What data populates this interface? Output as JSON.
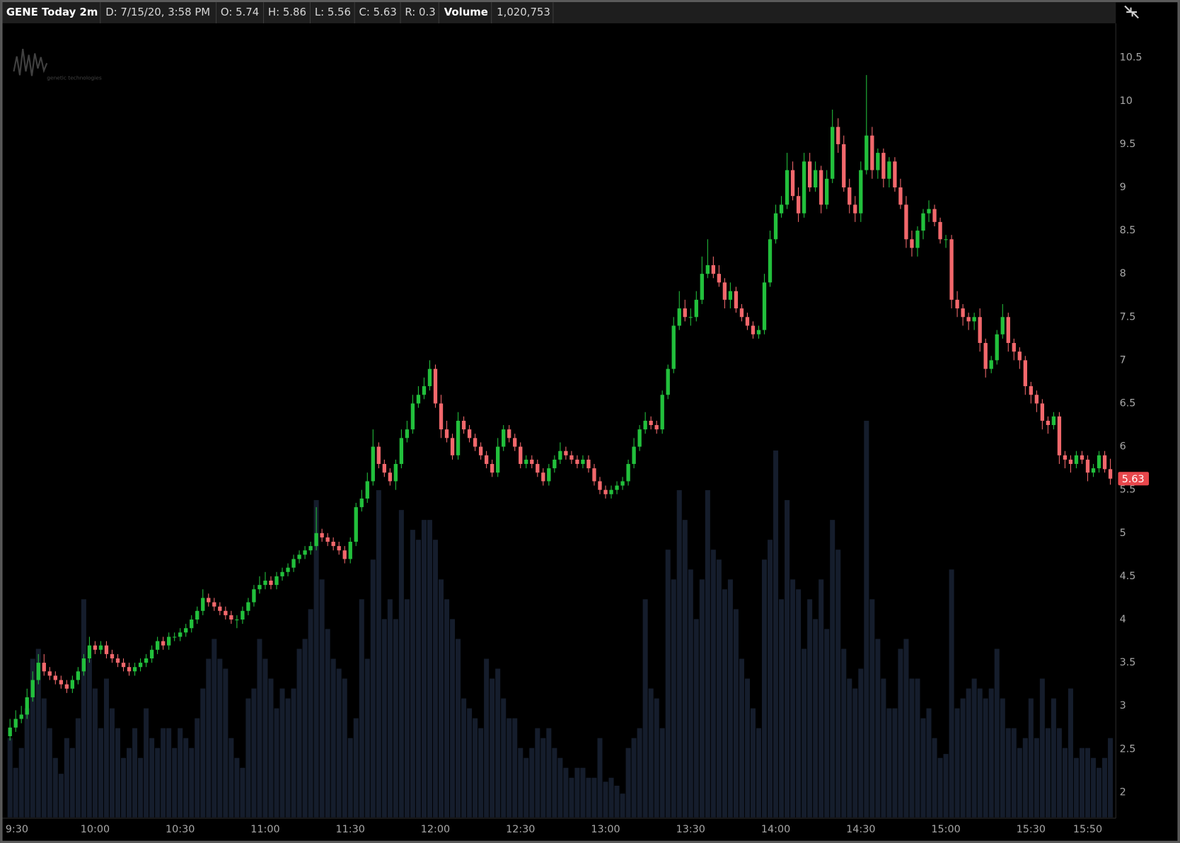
{
  "header": {
    "symbol": "GENE Today 2m",
    "date": "D: 7/15/20, 3:58 PM",
    "open": "O: 5.74",
    "high": "H: 5.86",
    "low": "L: 5.56",
    "close": "C: 5.63",
    "range": "R: 0.3",
    "volume_label": "Volume",
    "volume": "1,020,753"
  },
  "chart_data": {
    "type": "candlestick",
    "watermark": "genetic technologies",
    "categories": [
      "9:30",
      null,
      null,
      null,
      null,
      null,
      null,
      null,
      null,
      null,
      null,
      null,
      null,
      null,
      null,
      "10:00",
      null,
      null,
      null,
      null,
      null,
      null,
      null,
      null,
      null,
      null,
      null,
      null,
      null,
      null,
      "10:30",
      null,
      null,
      null,
      null,
      null,
      null,
      null,
      null,
      null,
      null,
      null,
      null,
      null,
      null,
      "11:00",
      null,
      null,
      null,
      null,
      null,
      null,
      null,
      null,
      null,
      null,
      null,
      null,
      null,
      null,
      "11:30",
      null,
      null,
      null,
      null,
      null,
      null,
      null,
      null,
      null,
      null,
      null,
      null,
      null,
      null,
      "12:00",
      null,
      null,
      null,
      null,
      null,
      null,
      null,
      null,
      null,
      null,
      null,
      null,
      null,
      null,
      "12:30",
      null,
      null,
      null,
      null,
      null,
      null,
      null,
      null,
      null,
      null,
      null,
      null,
      null,
      null,
      "13:00",
      null,
      null,
      null,
      null,
      null,
      null,
      null,
      null,
      null,
      null,
      null,
      null,
      null,
      null,
      "13:30",
      null,
      null,
      null,
      null,
      null,
      null,
      null,
      null,
      null,
      null,
      null,
      null,
      null,
      null,
      "14:00",
      null,
      null,
      null,
      null,
      null,
      null,
      null,
      null,
      null,
      null,
      null,
      null,
      null,
      null,
      "14:30",
      null,
      null,
      null,
      null,
      null,
      null,
      null,
      null,
      null,
      null,
      null,
      null,
      null,
      null,
      "15:00",
      null,
      null,
      null,
      null,
      null,
      null,
      null,
      null,
      null,
      null,
      null,
      null,
      null,
      null,
      "15:30",
      null,
      null,
      null,
      null,
      null,
      null,
      null,
      null,
      null,
      "15:50",
      null,
      null,
      null,
      null
    ],
    "open": [
      2.65,
      2.75,
      2.85,
      2.9,
      3.1,
      3.3,
      3.5,
      3.4,
      3.35,
      3.3,
      3.25,
      3.2,
      3.3,
      3.4,
      3.55,
      3.7,
      3.65,
      3.7,
      3.6,
      3.55,
      3.5,
      3.45,
      3.4,
      3.45,
      3.5,
      3.55,
      3.65,
      3.75,
      3.7,
      3.8,
      3.8,
      3.85,
      3.9,
      4.0,
      4.1,
      4.25,
      4.2,
      4.15,
      4.1,
      4.05,
      4.0,
      4.0,
      4.1,
      4.2,
      4.35,
      4.4,
      4.45,
      4.4,
      4.5,
      4.55,
      4.6,
      4.7,
      4.75,
      4.8,
      4.85,
      5.0,
      4.95,
      4.9,
      4.85,
      4.8,
      4.7,
      4.9,
      5.3,
      5.4,
      5.6,
      6.0,
      5.8,
      5.7,
      5.6,
      5.8,
      6.1,
      6.2,
      6.5,
      6.6,
      6.7,
      6.9,
      6.5,
      6.2,
      6.1,
      5.9,
      6.3,
      6.2,
      6.1,
      6.0,
      5.9,
      5.8,
      5.7,
      6.0,
      6.2,
      6.1,
      6.0,
      5.8,
      5.85,
      5.8,
      5.7,
      5.6,
      5.75,
      5.85,
      5.95,
      5.9,
      5.85,
      5.8,
      5.85,
      5.75,
      5.6,
      5.5,
      5.45,
      5.5,
      5.55,
      5.6,
      5.8,
      6.0,
      6.2,
      6.3,
      6.25,
      6.2,
      6.6,
      6.9,
      7.4,
      7.6,
      7.5,
      7.5,
      7.7,
      8.0,
      8.1,
      8.0,
      7.9,
      7.7,
      7.8,
      7.6,
      7.5,
      7.4,
      7.3,
      7.35,
      7.9,
      8.4,
      8.7,
      8.8,
      9.2,
      8.9,
      8.7,
      9.3,
      9.0,
      9.2,
      8.8,
      9.1,
      9.7,
      9.5,
      9.0,
      8.8,
      8.7,
      9.2,
      9.6,
      9.2,
      9.4,
      9.1,
      9.3,
      9.0,
      8.8,
      8.4,
      8.3,
      8.5,
      8.7,
      8.75,
      8.6,
      8.4,
      8.4,
      7.7,
      7.6,
      7.5,
      7.45,
      7.5,
      7.2,
      6.9,
      7.0,
      7.3,
      7.5,
      7.2,
      7.1,
      7.0,
      6.7,
      6.6,
      6.5,
      6.3,
      6.25,
      6.35,
      5.9,
      5.85,
      5.8,
      5.9,
      5.85,
      5.7,
      5.75,
      5.9,
      5.74
    ],
    "high": [
      2.85,
      2.95,
      3.0,
      3.2,
      3.4,
      3.6,
      3.6,
      3.45,
      3.4,
      3.35,
      3.3,
      3.35,
      3.45,
      3.6,
      3.8,
      3.75,
      3.75,
      3.75,
      3.65,
      3.6,
      3.55,
      3.5,
      3.5,
      3.55,
      3.6,
      3.7,
      3.8,
      3.8,
      3.85,
      3.85,
      3.9,
      3.95,
      4.05,
      4.15,
      4.35,
      4.3,
      4.25,
      4.2,
      4.15,
      4.1,
      4.05,
      4.15,
      4.25,
      4.4,
      4.5,
      4.55,
      4.5,
      4.55,
      4.6,
      4.65,
      4.75,
      4.8,
      4.85,
      4.9,
      5.3,
      5.05,
      5.0,
      4.95,
      4.9,
      4.85,
      4.95,
      5.35,
      5.5,
      5.7,
      6.2,
      6.05,
      5.85,
      5.75,
      5.85,
      6.2,
      6.3,
      6.6,
      6.7,
      6.8,
      7.0,
      6.95,
      6.6,
      6.3,
      6.15,
      6.4,
      6.35,
      6.25,
      6.15,
      6.05,
      5.95,
      5.85,
      6.1,
      6.25,
      6.25,
      6.15,
      6.05,
      5.9,
      5.9,
      5.85,
      5.75,
      5.8,
      5.9,
      6.05,
      6.0,
      5.95,
      5.9,
      5.9,
      5.9,
      5.8,
      5.65,
      5.55,
      5.55,
      5.6,
      5.65,
      5.85,
      6.1,
      6.25,
      6.4,
      6.35,
      6.3,
      6.65,
      6.95,
      7.5,
      7.8,
      7.7,
      7.6,
      7.8,
      8.2,
      8.4,
      8.2,
      8.1,
      7.95,
      7.9,
      7.85,
      7.65,
      7.55,
      7.45,
      7.4,
      8.0,
      8.5,
      8.8,
      8.9,
      9.4,
      9.3,
      9.0,
      9.4,
      9.4,
      9.3,
      9.25,
      9.2,
      9.9,
      9.8,
      9.6,
      9.1,
      8.9,
      9.3,
      10.3,
      9.7,
      9.45,
      9.45,
      9.35,
      9.35,
      9.1,
      8.9,
      8.5,
      8.55,
      8.75,
      8.85,
      8.8,
      8.65,
      8.45,
      8.45,
      7.8,
      7.65,
      7.55,
      7.55,
      7.6,
      7.25,
      7.05,
      7.35,
      7.65,
      7.55,
      7.25,
      7.15,
      7.05,
      6.75,
      6.65,
      6.55,
      6.35,
      6.4,
      6.4,
      5.95,
      5.9,
      5.95,
      5.95,
      5.9,
      5.8,
      5.95,
      5.95,
      5.86
    ],
    "low": [
      2.6,
      2.7,
      2.8,
      2.85,
      3.05,
      3.25,
      3.35,
      3.3,
      3.25,
      3.2,
      3.15,
      3.15,
      3.25,
      3.35,
      3.5,
      3.6,
      3.6,
      3.55,
      3.5,
      3.45,
      3.4,
      3.35,
      3.35,
      3.4,
      3.45,
      3.5,
      3.6,
      3.65,
      3.65,
      3.75,
      3.75,
      3.8,
      3.85,
      3.95,
      4.05,
      4.15,
      4.1,
      4.05,
      4.0,
      3.95,
      3.9,
      3.95,
      4.05,
      4.15,
      4.3,
      4.35,
      4.35,
      4.35,
      4.45,
      4.5,
      4.55,
      4.65,
      4.7,
      4.75,
      4.8,
      4.9,
      4.85,
      4.8,
      4.75,
      4.65,
      4.65,
      4.85,
      5.25,
      5.35,
      5.55,
      5.75,
      5.65,
      5.55,
      5.5,
      5.75,
      6.05,
      6.15,
      6.45,
      6.55,
      6.65,
      6.45,
      6.1,
      6.05,
      5.85,
      5.85,
      6.15,
      6.05,
      5.95,
      5.85,
      5.75,
      5.65,
      5.65,
      5.95,
      6.05,
      5.95,
      5.75,
      5.75,
      5.75,
      5.65,
      5.55,
      5.55,
      5.7,
      5.8,
      5.85,
      5.8,
      5.75,
      5.75,
      5.7,
      5.55,
      5.45,
      5.4,
      5.4,
      5.45,
      5.5,
      5.55,
      5.75,
      5.95,
      6.15,
      6.2,
      6.15,
      6.15,
      6.55,
      6.85,
      7.35,
      7.45,
      7.4,
      7.45,
      7.65,
      7.95,
      7.95,
      7.85,
      7.6,
      7.6,
      7.55,
      7.45,
      7.35,
      7.25,
      7.25,
      7.3,
      7.85,
      8.35,
      8.65,
      8.75,
      8.85,
      8.6,
      8.65,
      8.95,
      8.95,
      8.7,
      8.75,
      9.05,
      9.4,
      8.95,
      8.7,
      8.6,
      8.6,
      9.15,
      9.1,
      9.1,
      9.0,
      9.0,
      8.95,
      8.75,
      8.3,
      8.2,
      8.2,
      8.4,
      8.6,
      8.55,
      8.35,
      8.3,
      7.6,
      7.5,
      7.4,
      7.35,
      7.35,
      7.1,
      6.8,
      6.85,
      6.95,
      7.25,
      7.1,
      7.0,
      6.9,
      6.6,
      6.5,
      6.4,
      6.2,
      6.15,
      6.2,
      5.8,
      5.75,
      5.7,
      5.75,
      5.8,
      5.6,
      5.65,
      5.7,
      5.7,
      5.56
    ],
    "close": [
      2.75,
      2.85,
      2.9,
      3.1,
      3.3,
      3.5,
      3.4,
      3.35,
      3.3,
      3.25,
      3.2,
      3.3,
      3.4,
      3.55,
      3.7,
      3.65,
      3.7,
      3.6,
      3.55,
      3.5,
      3.45,
      3.4,
      3.45,
      3.5,
      3.55,
      3.65,
      3.75,
      3.7,
      3.8,
      3.8,
      3.85,
      3.9,
      4.0,
      4.1,
      4.25,
      4.2,
      4.15,
      4.1,
      4.05,
      4.0,
      4.0,
      4.1,
      4.2,
      4.35,
      4.4,
      4.45,
      4.4,
      4.5,
      4.55,
      4.6,
      4.7,
      4.75,
      4.8,
      4.85,
      5.0,
      4.95,
      4.9,
      4.85,
      4.8,
      4.7,
      4.9,
      5.3,
      5.4,
      5.6,
      6.0,
      5.8,
      5.7,
      5.6,
      5.8,
      6.1,
      6.2,
      6.5,
      6.6,
      6.7,
      6.9,
      6.5,
      6.2,
      6.1,
      5.9,
      6.3,
      6.2,
      6.1,
      6.0,
      5.9,
      5.8,
      5.7,
      6.0,
      6.2,
      6.1,
      6.0,
      5.8,
      5.85,
      5.8,
      5.7,
      5.6,
      5.75,
      5.85,
      5.95,
      5.9,
      5.85,
      5.8,
      5.85,
      5.75,
      5.6,
      5.5,
      5.45,
      5.5,
      5.55,
      5.6,
      5.8,
      6.0,
      6.2,
      6.3,
      6.25,
      6.2,
      6.6,
      6.9,
      7.4,
      7.6,
      7.5,
      7.5,
      7.7,
      8.0,
      8.1,
      8.0,
      7.9,
      7.7,
      7.8,
      7.6,
      7.5,
      7.4,
      7.3,
      7.35,
      7.9,
      8.4,
      8.7,
      8.8,
      9.2,
      8.9,
      8.7,
      9.3,
      9.0,
      9.2,
      8.8,
      9.1,
      9.7,
      9.5,
      9.0,
      8.8,
      8.7,
      9.2,
      9.6,
      9.2,
      9.4,
      9.1,
      9.3,
      9.0,
      8.8,
      8.4,
      8.3,
      8.5,
      8.7,
      8.75,
      8.6,
      8.4,
      8.4,
      7.7,
      7.6,
      7.5,
      7.45,
      7.5,
      7.2,
      6.9,
      7.0,
      7.3,
      7.5,
      7.2,
      7.1,
      7.0,
      6.7,
      6.6,
      6.5,
      6.3,
      6.25,
      6.35,
      5.9,
      5.85,
      5.8,
      5.9,
      5.85,
      5.7,
      5.75,
      5.9,
      5.74,
      5.63
    ],
    "volume": [
      4000,
      2500,
      3500,
      5500,
      8000,
      8500,
      6000,
      4500,
      3000,
      2200,
      4000,
      3500,
      5000,
      11000,
      8000,
      6500,
      4500,
      7000,
      5500,
      4500,
      3000,
      3500,
      4500,
      3000,
      5500,
      4000,
      3500,
      4500,
      4500,
      3500,
      4500,
      4000,
      3500,
      5000,
      6500,
      8000,
      9000,
      8000,
      7500,
      4000,
      3000,
      2500,
      6000,
      6500,
      9000,
      8000,
      7000,
      5500,
      6500,
      6000,
      6500,
      8500,
      9000,
      10500,
      16000,
      12000,
      9500,
      8000,
      7500,
      7000,
      4000,
      5000,
      11000,
      8000,
      13000,
      16500,
      10000,
      11000,
      10000,
      15500,
      11000,
      14500,
      14000,
      15000,
      15000,
      14000,
      12000,
      11000,
      10000,
      9000,
      6000,
      5500,
      5000,
      4500,
      8000,
      7000,
      7500,
      6000,
      5000,
      5000,
      3500,
      3000,
      3500,
      4500,
      4000,
      4500,
      3500,
      3000,
      2500,
      2000,
      2500,
      2500,
      2000,
      2000,
      4000,
      1800,
      2000,
      1600,
      1200,
      3500,
      4000,
      4500,
      11000,
      6500,
      6000,
      4500,
      13500,
      12000,
      16500,
      15000,
      12500,
      10000,
      12000,
      16500,
      13500,
      13000,
      11500,
      12000,
      10500,
      8000,
      7000,
      5500,
      4500,
      13000,
      14000,
      18500,
      11000,
      16000,
      12000,
      11500,
      8500,
      11000,
      10000,
      12000,
      9500,
      15000,
      13500,
      8500,
      7000,
      6500,
      7500,
      20000,
      11000,
      9000,
      7000,
      5500,
      5500,
      8500,
      9000,
      7000,
      7000,
      5000,
      5500,
      4000,
      3000,
      3200,
      12500,
      5500,
      6000,
      6500,
      7000,
      6500,
      6000,
      6500,
      8500,
      6000,
      4500,
      4500,
      3500,
      4000,
      6000,
      4000,
      7000,
      4500,
      6000,
      4500,
      3500,
      6500,
      3000,
      3500,
      3500,
      3000,
      2500,
      3000,
      4000
    ],
    "up_color": "#22c03c",
    "down_color": "#f2686c",
    "volume_color": "#151d2c",
    "ylim": [
      1.71,
      10.89
    ],
    "yticks": [
      2,
      2.5,
      3,
      3.5,
      4,
      4.5,
      5,
      5.5,
      6,
      6.5,
      7,
      7.5,
      8,
      8.5,
      9,
      9.5,
      10,
      10.5
    ],
    "y2lim": [
      0,
      40000
    ],
    "grid": false
  }
}
